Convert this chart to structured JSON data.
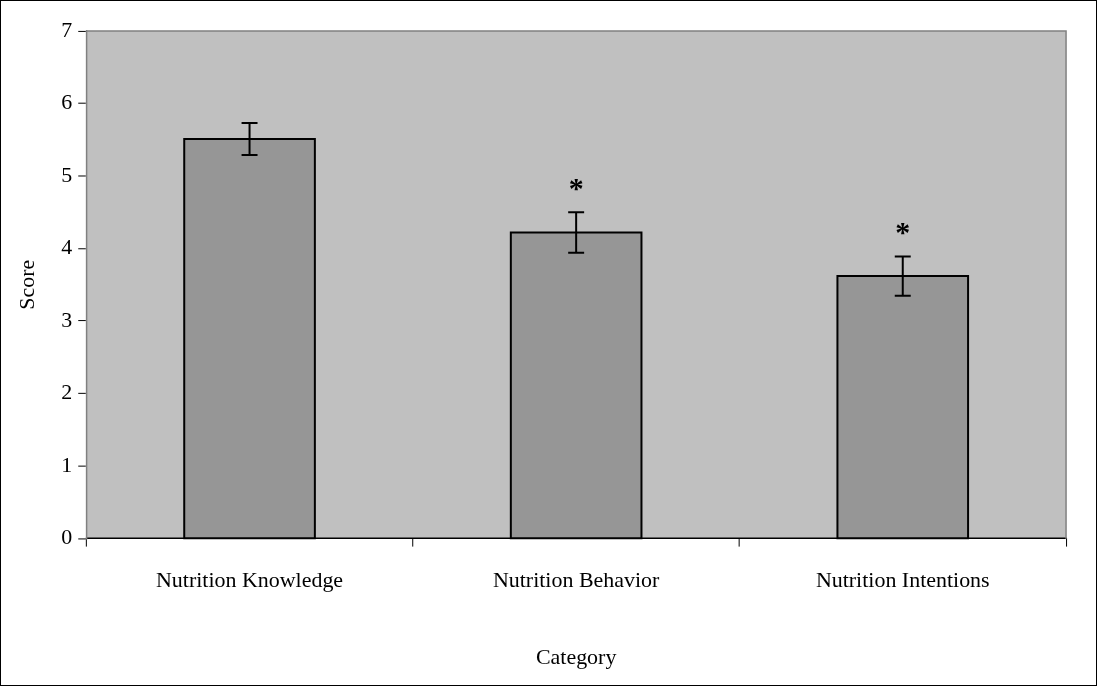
{
  "chart_data": {
    "type": "bar",
    "xlabel": "Category",
    "ylabel": "Score",
    "categories": [
      "Nutrition Knowledge",
      "Nutrition Behavior",
      "Nutrition Intentions"
    ],
    "values": [
      5.51,
      4.22,
      3.62
    ],
    "errors": [
      0.22,
      0.28,
      0.27
    ],
    "color": "#969696",
    "ylim": [
      0,
      7
    ],
    "yticks": [
      0,
      1,
      2,
      3,
      4,
      5,
      6,
      7
    ],
    "grid": false,
    "legend": false,
    "annotations": [
      "*",
      "*"
    ]
  }
}
